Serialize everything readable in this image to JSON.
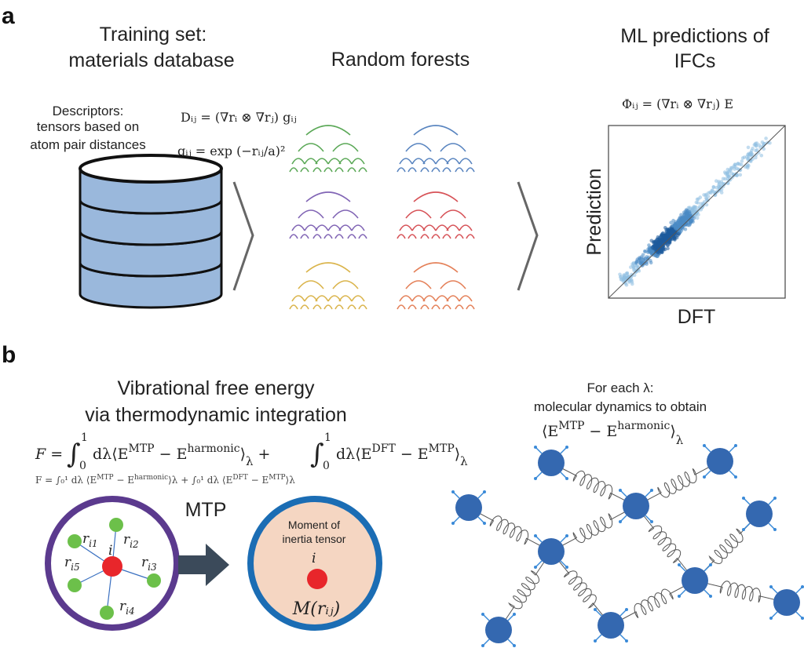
{
  "panel_a": {
    "label": "a",
    "training_title": [
      "Training set:",
      "materials database"
    ],
    "descriptors": [
      "Descriptors:",
      "tensors based on",
      "atom pair distances"
    ],
    "formula_d": "Dᵢⱼ = (∇rᵢ ⊗ ∇rⱼ) gᵢⱼ",
    "formula_g": "gᵢⱼ = exp (−rᵢⱼ/a)²",
    "forests_title": "Random forests",
    "forest_colors": [
      "#3f9a3a",
      "#3c6fb5",
      "#6b4aa8",
      "#d0343a",
      "#d4a72c",
      "#e06a3c"
    ],
    "ml_title": [
      "ML predictions of",
      "IFCs"
    ],
    "formula_phi": "Φᵢⱼ = (∇rᵢ ⊗ ∇rⱼ) E",
    "plot": {
      "ylabel": "Prediction",
      "xlabel": "DFT"
    },
    "database_color": "#9ab8dc"
  },
  "panel_b": {
    "label": "b",
    "vib_title": [
      "Vibrational free energy",
      "via thermodynamic integration"
    ],
    "formula_f": "F = ∫₀¹ dλ ⟨E^MTP − E^harmonic⟩λ + ∫₀¹ dλ ⟨E^DFT − E^MTP⟩λ",
    "formula_parts": {
      "lhs": "F = ",
      "int1": "∫",
      "d1": "dλ⟨E",
      "sup1": "MTP",
      "minus1": " − E",
      "sup2": "harmonic",
      "close1": "⟩",
      "lam": "λ",
      "plus": " + ",
      "d2": "dλ⟨E",
      "sup3": "DFT",
      "minus2": " − E",
      "sup4": "MTP",
      "close2": "⟩",
      "one": "1",
      "zero": "0"
    },
    "md_title": [
      "For each λ:",
      "molecular dynamics to obtain"
    ],
    "md_expr": {
      "open": "⟨E",
      "sup1": "MTP",
      "minus": " − E",
      "sup2": "harmonic",
      "close": "⟩",
      "sub": "λ"
    },
    "mtp_label": "MTP",
    "neighbors": [
      "ri1",
      "ri2",
      "ri3",
      "ri4",
      "ri5"
    ],
    "center_atom": "i",
    "moment_text": [
      "Moment of",
      "inertia tensor"
    ],
    "moment_atom": "i",
    "moment_formula": "M(rᵢⱼ)",
    "colors": {
      "purple_ring": "#5b3a8e",
      "blue_ring": "#1b6db4",
      "peach": "#f5d6c2",
      "red_atom": "#e8262b",
      "green_atom": "#6cc04a",
      "node_blue": "#3468b0",
      "arrow": "#3b4a5a"
    }
  }
}
